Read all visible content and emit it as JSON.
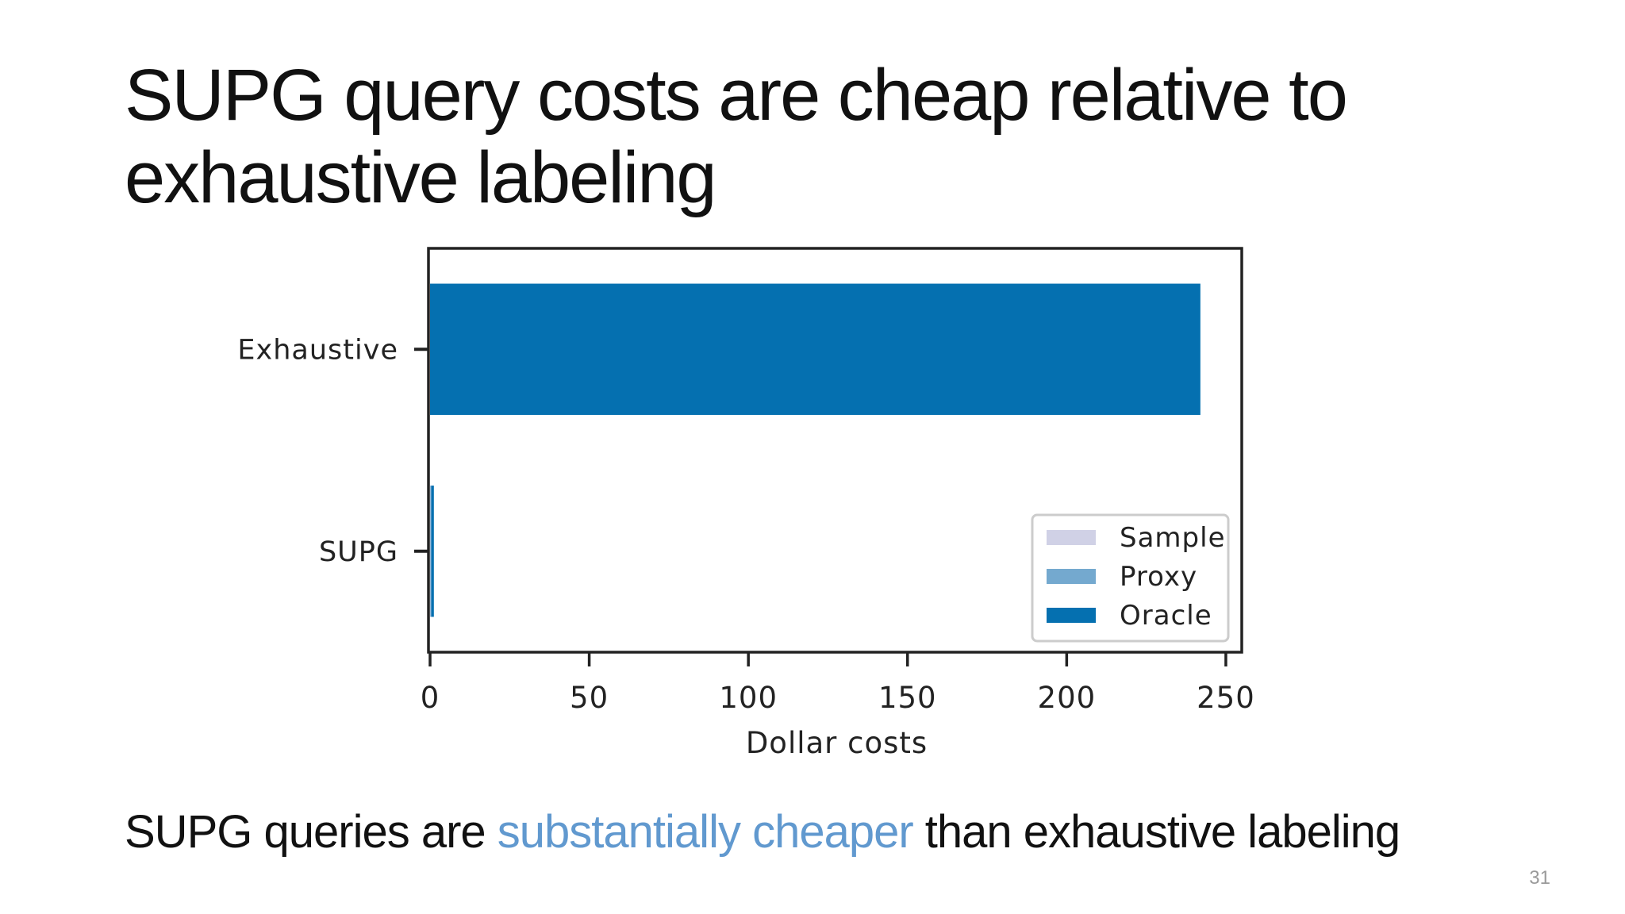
{
  "slide": {
    "title_line1": "SUPG query costs are cheap relative to",
    "title_line2": "exhaustive labeling",
    "caption_before": "SUPG queries are ",
    "caption_highlight": "substantially cheaper",
    "caption_after": " than exhaustive labeling",
    "page_number": "31",
    "highlight_color": "#6199cf"
  },
  "chart_data": {
    "type": "bar",
    "orientation": "horizontal",
    "stacked": true,
    "categories": [
      "Exhaustive",
      "SUPG"
    ],
    "series": [
      {
        "name": "Sample",
        "values": [
          0,
          0.1
        ],
        "color": "#d0d1e6"
      },
      {
        "name": "Proxy",
        "values": [
          0,
          0.3
        ],
        "color": "#74a9cf"
      },
      {
        "name": "Oracle",
        "values": [
          242,
          0.8
        ],
        "color": "#0570b0"
      }
    ],
    "xlabel": "Dollar costs",
    "ylabel": "",
    "xlim": [
      0,
      255
    ],
    "xticks": [
      0,
      50,
      100,
      150,
      200,
      250
    ],
    "grid": false,
    "legend_position": "lower-right"
  }
}
